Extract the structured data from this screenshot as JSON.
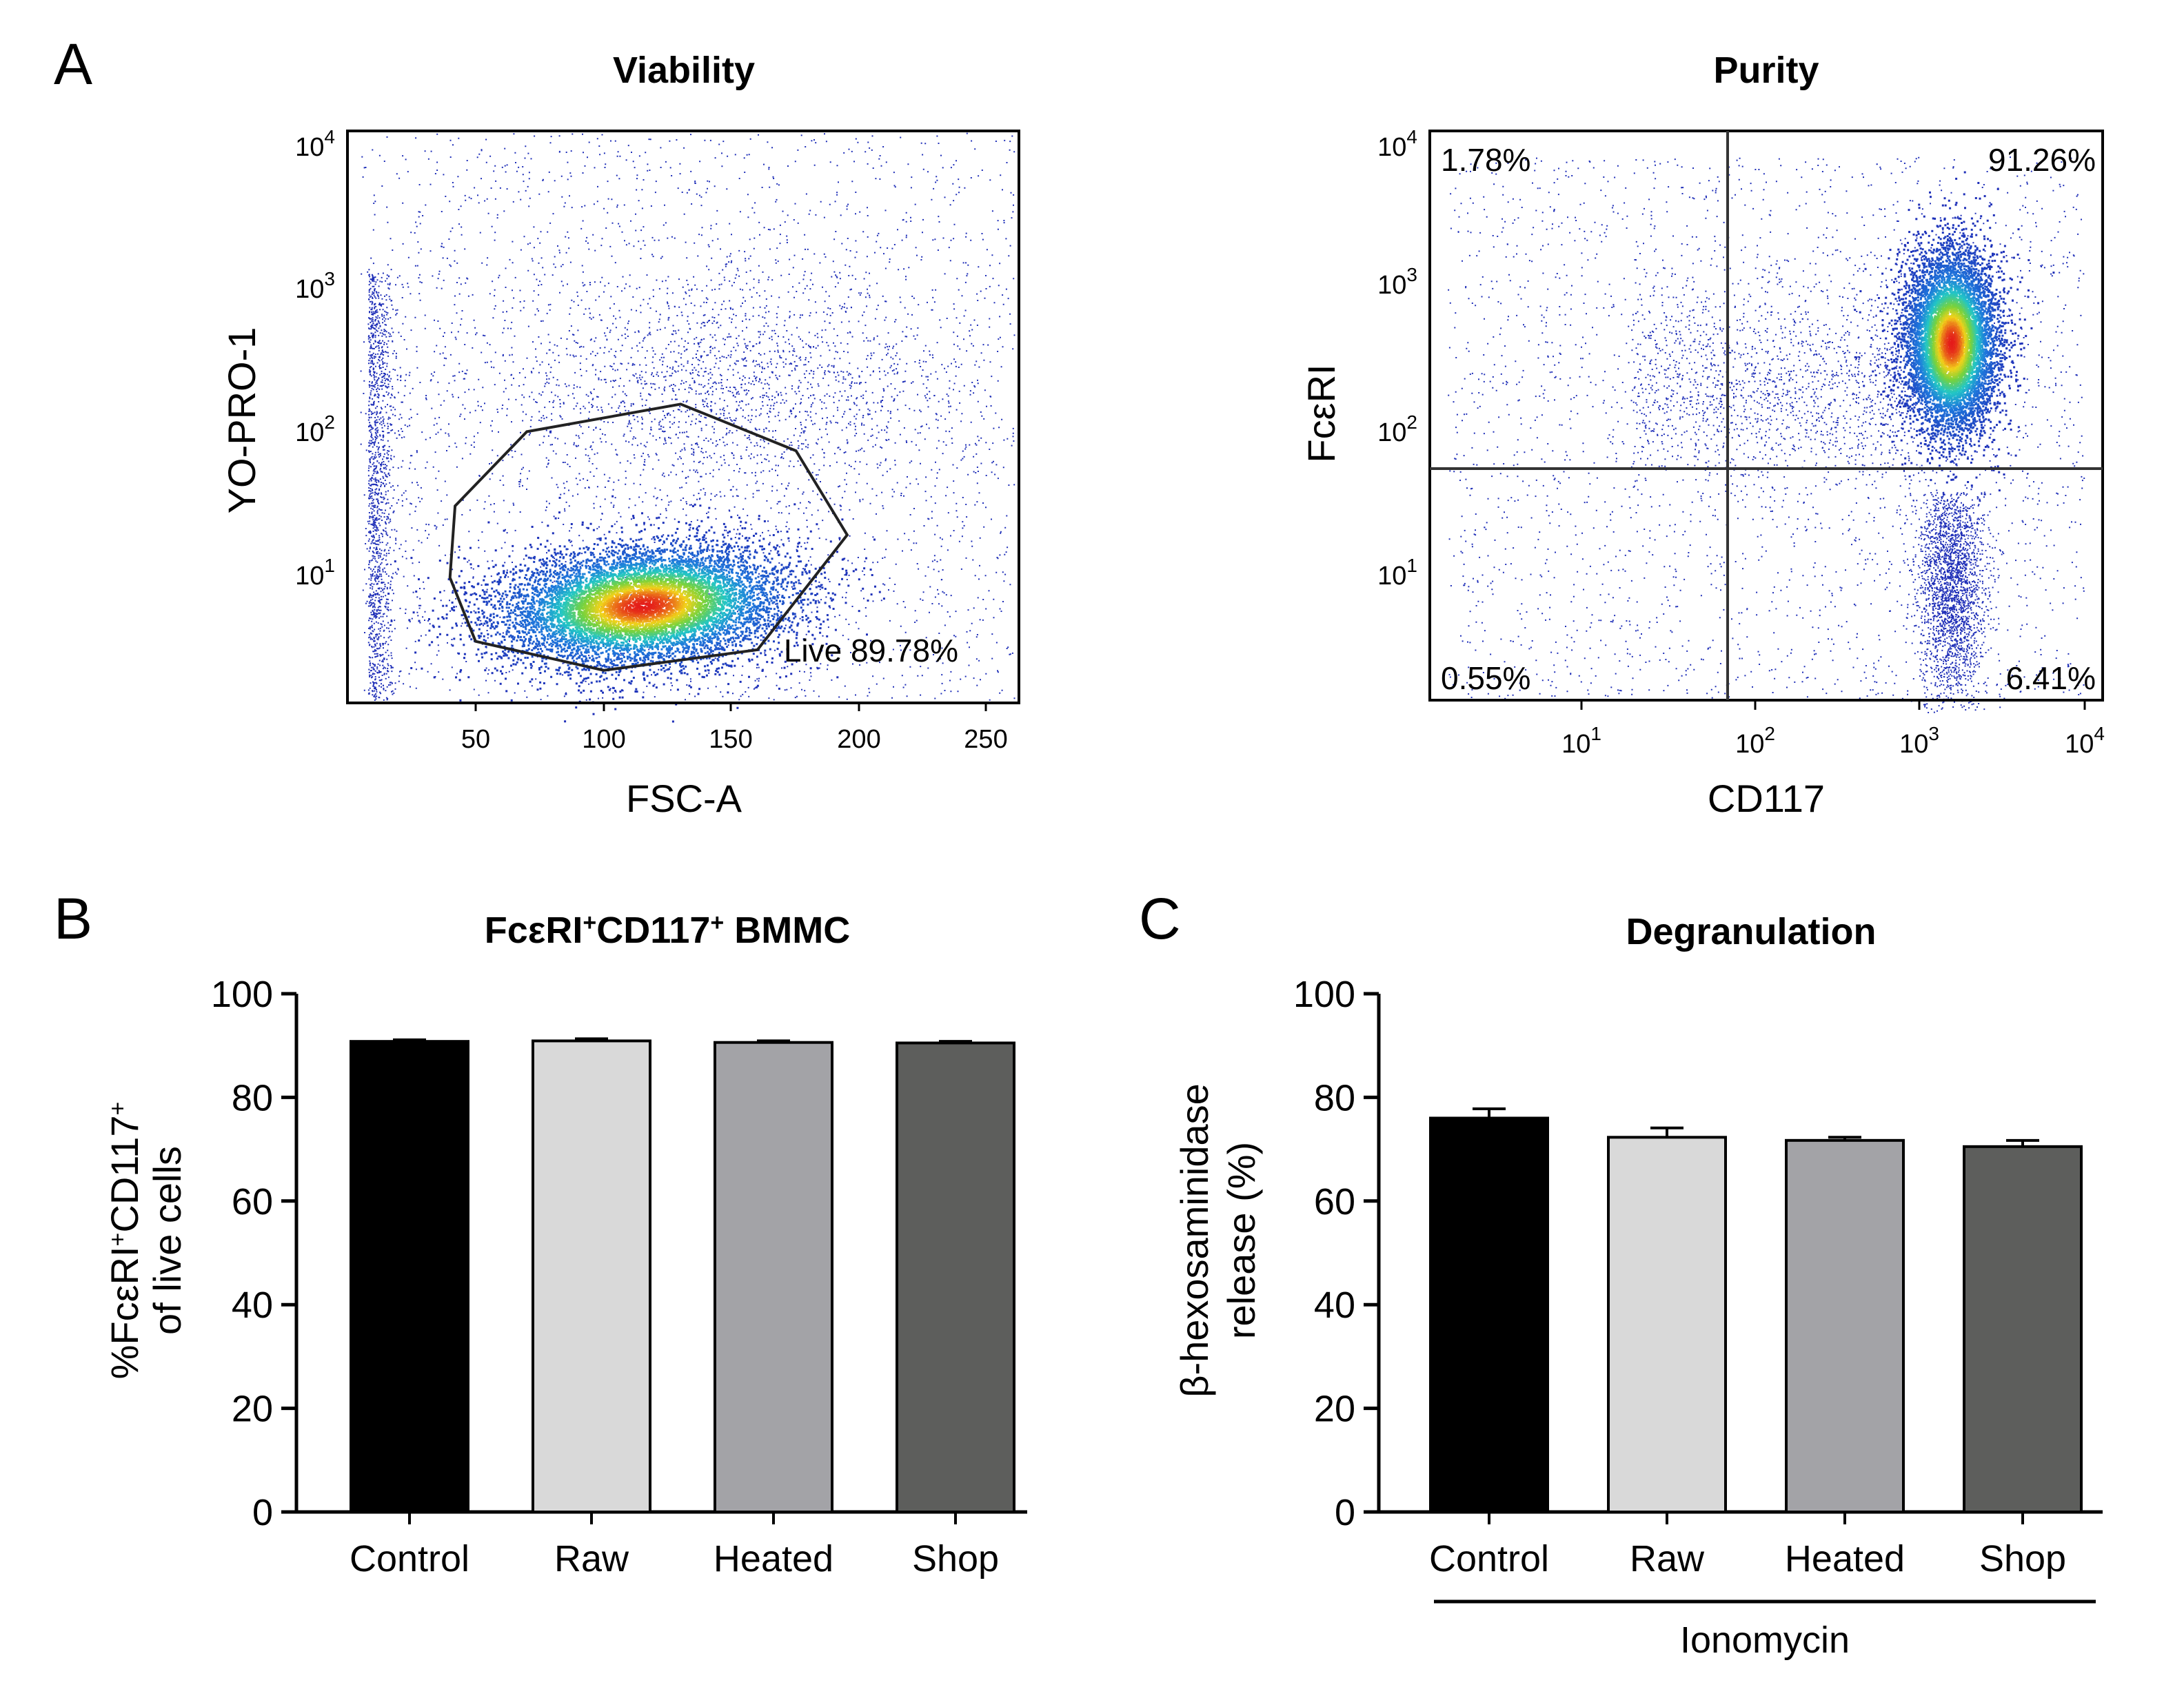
{
  "panel_letters": [
    "A",
    "B",
    "C"
  ],
  "colors": {
    "density_low": "#1f2fb8",
    "density_mid": "#22c6c6",
    "density_high": "#f2d21a",
    "density_peak": "#e41a1a",
    "bar_control": "#000000",
    "bar_raw": "#d9d9d9",
    "bar_heated": "#a3a3a7",
    "bar_shop": "#5d5e5c"
  },
  "chart_data": [
    {
      "type": "scatter",
      "panel": "A",
      "title": "Viability",
      "xlabel": "FSC-A",
      "ylabel": "YO-PRO-1",
      "x_ticks": [
        "50",
        "100",
        "150",
        "200",
        "250"
      ],
      "y_ticks": [
        {
          "base": "10",
          "exp": "1"
        },
        {
          "base": "10",
          "exp": "2"
        },
        {
          "base": "10",
          "exp": "3"
        },
        {
          "base": "10",
          "exp": "4"
        }
      ],
      "y_scale": "log",
      "xlim": [
        0,
        262
      ],
      "gate_label": "Live 89.78%",
      "gate_polygon": [
        [
          40,
          22
        ],
        [
          50,
          9
        ],
        [
          100,
          6
        ],
        [
          160,
          8
        ],
        [
          195,
          40
        ],
        [
          175,
          130
        ],
        [
          130,
          250
        ],
        [
          70,
          170
        ],
        [
          42,
          60
        ]
      ],
      "density_center": [
        115,
        15
      ]
    },
    {
      "type": "scatter",
      "panel": "A",
      "title": "Purity",
      "xlabel": "CD117",
      "ylabel": "FcεRI",
      "x_ticks": [
        {
          "base": "10",
          "exp": "1"
        },
        {
          "base": "10",
          "exp": "2"
        },
        {
          "base": "10",
          "exp": "3"
        },
        {
          "base": "10",
          "exp": "4"
        }
      ],
      "y_ticks": [
        {
          "base": "10",
          "exp": "1"
        },
        {
          "base": "10",
          "exp": "2"
        },
        {
          "base": "10",
          "exp": "3"
        },
        {
          "base": "10",
          "exp": "4"
        }
      ],
      "x_scale": "log",
      "y_scale": "log",
      "quadrant_gate": [
        60,
        50
      ],
      "quadrants": {
        "top_left": "1.78%",
        "top_right": "91.26%",
        "bottom_left": "0.55%",
        "bottom_right": "6.41%"
      },
      "density_center": [
        1600,
        500
      ]
    },
    {
      "type": "bar",
      "panel": "B",
      "title_parts": [
        "FcεRI",
        "+",
        "CD117",
        "+",
        " BMMC"
      ],
      "ylabel_line1_parts": [
        "%FcεRI",
        "+",
        "CD117",
        "+"
      ],
      "ylabel_line2": "of live cells",
      "categories": [
        "Control",
        "Raw",
        "Heated",
        "Shop"
      ],
      "values": [
        90.8,
        90.9,
        90.6,
        90.5
      ],
      "errors": [
        0.3,
        0.4,
        0.3,
        0.3
      ],
      "ylim": [
        0,
        100
      ],
      "y_ticks": [
        "0",
        "20",
        "40",
        "60",
        "80",
        "100"
      ]
    },
    {
      "type": "bar",
      "panel": "C",
      "title": "Degranulation",
      "ylabel_line1": "β-hexosaminidase",
      "ylabel_line2": "release (%)",
      "categories": [
        "Control",
        "Raw",
        "Heated",
        "Shop"
      ],
      "values": [
        76.0,
        72.3,
        71.7,
        70.5
      ],
      "errors": [
        1.8,
        1.8,
        0.6,
        1.2
      ],
      "ylim": [
        0,
        100
      ],
      "y_ticks": [
        "0",
        "20",
        "40",
        "60",
        "80",
        "100"
      ],
      "group_label": "Ionomycin"
    }
  ]
}
